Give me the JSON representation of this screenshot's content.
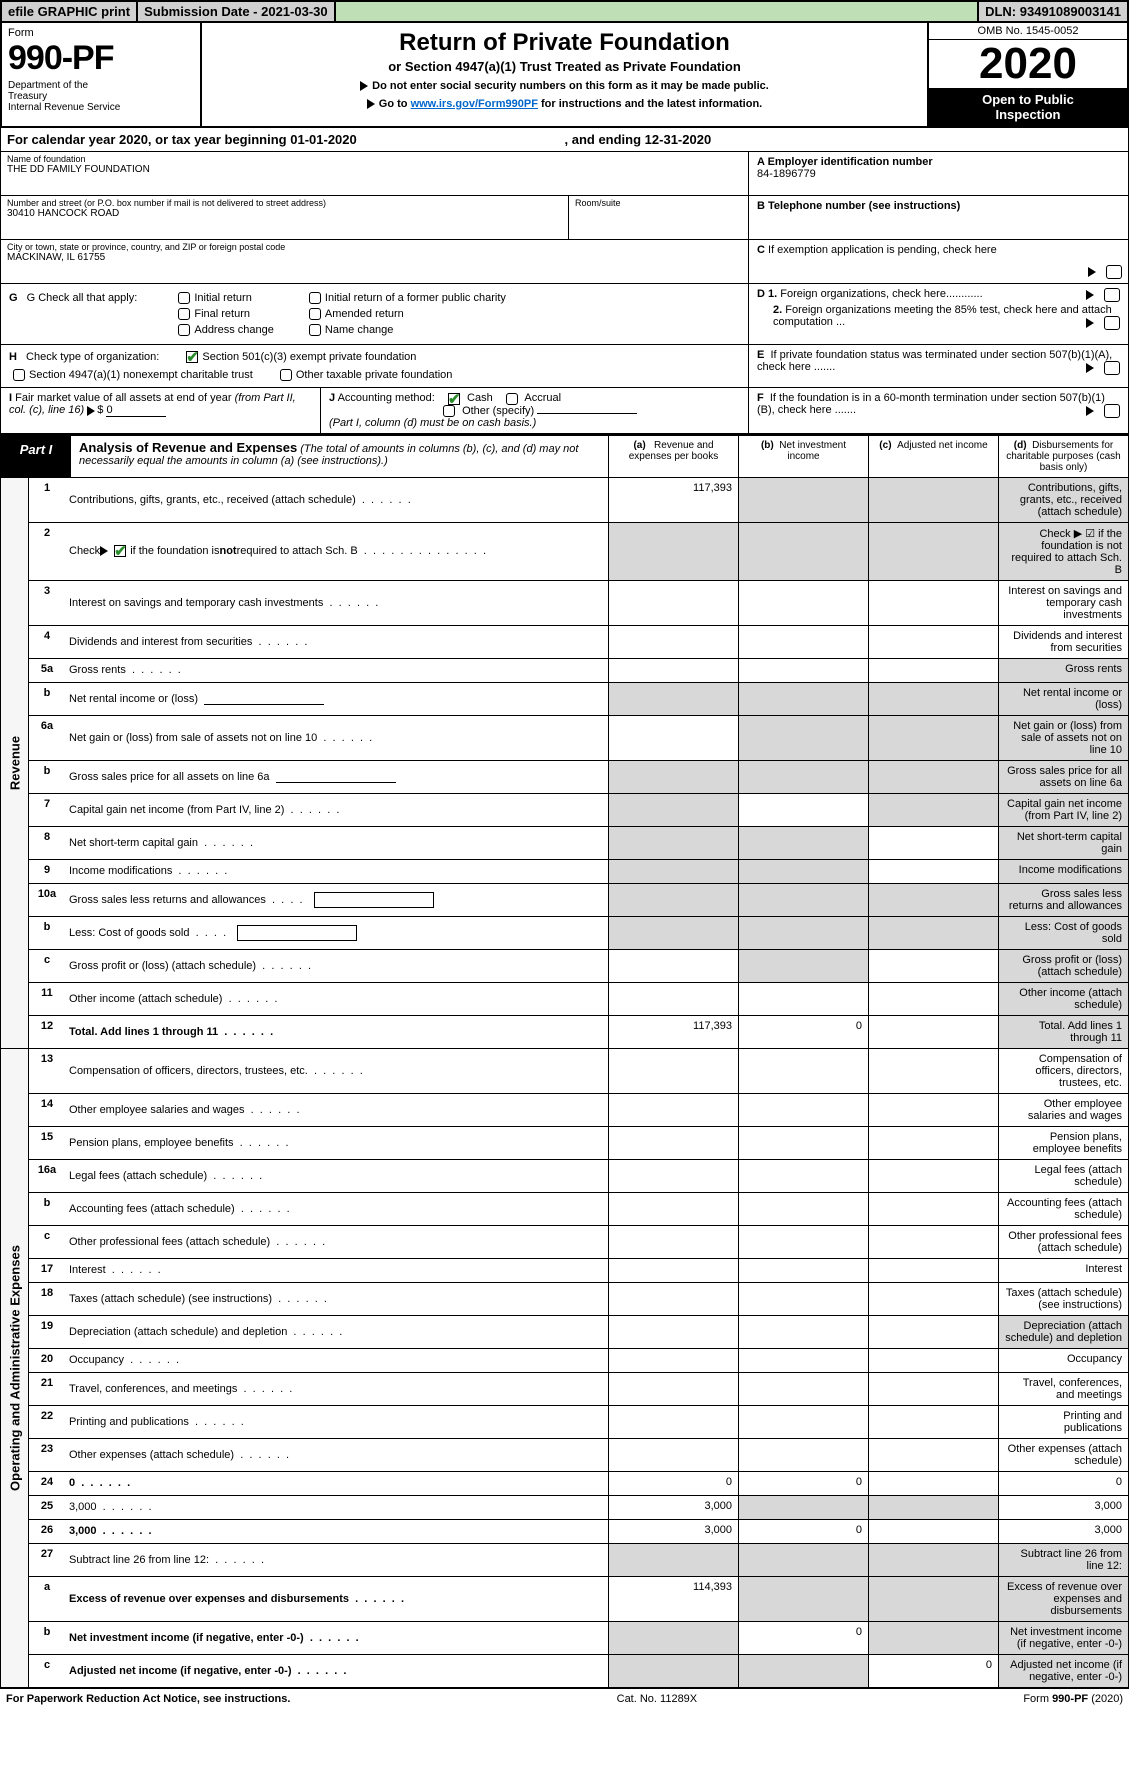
{
  "topbar": {
    "efile": "efile GRAPHIC print",
    "submission_label": "Submission Date - ",
    "submission_date": "2021-03-30",
    "dln_label": "DLN: ",
    "dln": "93491089003141"
  },
  "header": {
    "form_label": "Form",
    "form_number": "990-PF",
    "dept": "Department of the Treasury\nInternal Revenue Service",
    "title1": "Return of Private Foundation",
    "title2": "or Section 4947(a)(1) Trust Treated as Private Foundation",
    "note1": "Do not enter social security numbers on this form as it may be made public.",
    "note2_pre": "Go to ",
    "note2_link": "www.irs.gov/Form990PF",
    "note2_post": " for instructions and the latest information.",
    "omb": "OMB No. 1545-0052",
    "year": "2020",
    "open": "Open to Public Inspection"
  },
  "calendar": {
    "prefix": "For calendar year 2020, or tax year beginning ",
    "begin": "01-01-2020",
    "mid": ", and ending ",
    "end": "12-31-2020"
  },
  "entity": {
    "name_label": "Name of foundation",
    "name": "THE DD FAMILY FOUNDATION",
    "addr_label": "Number and street (or P.O. box number if mail is not delivered to street address)",
    "addr": "30410 HANCOCK ROAD",
    "room_label": "Room/suite",
    "city_label": "City or town, state or province, country, and ZIP or foreign postal code",
    "city": "MACKINAW, IL  61755"
  },
  "right": {
    "a_label": "A Employer identification number",
    "a_value": "84-1896779",
    "b_label": "B Telephone number (see instructions)",
    "c_label": "C If exemption application is pending, check here",
    "d1": "D 1. Foreign organizations, check here............",
    "d2": "2. Foreign organizations meeting the 85% test, check here and attach computation ...",
    "e": "E  If private foundation status was terminated under section 507(b)(1)(A), check here .......",
    "f": "F  If the foundation is in a 60-month termination under section 507(b)(1)(B), check here .......",
    "g_label": "G Check all that apply:",
    "g_opts": {
      "initial": "Initial return",
      "initial_former": "Initial return of a former public charity",
      "final": "Final return",
      "amended": "Amended return",
      "address": "Address change",
      "name": "Name change"
    },
    "h_label": "H Check type of organization:",
    "h_501": "Section 501(c)(3) exempt private foundation",
    "h_4947": "Section 4947(a)(1) nonexempt charitable trust",
    "h_other": "Other taxable private foundation",
    "i_label": "I Fair market value of all assets at end of year (from Part II, col. (c), line 16)",
    "i_value": "0",
    "j_label": "J Accounting method:",
    "j_cash": "Cash",
    "j_accrual": "Accrual",
    "j_other": "Other (specify)",
    "j_note": "(Part I, column (d) must be on cash basis.)"
  },
  "part1": {
    "label": "Part I",
    "title": "Analysis of Revenue and Expenses",
    "subtitle": "(The total of amounts in columns (b), (c), and (d) may not necessarily equal the amounts in column (a) (see instructions).)",
    "col_a": "(a)   Revenue and expenses per books",
    "col_b": "(b)  Net investment income",
    "col_c": "(c)  Adjusted net income",
    "col_d": "(d)  Disbursements for charitable purposes (cash basis only)"
  },
  "revenue_rows": [
    {
      "n": "1",
      "d": "Contributions, gifts, grants, etc., received (attach schedule)",
      "a": "117,393",
      "grey_bcd": true
    },
    {
      "n": "2",
      "d": "Check ▶ ☑ if the foundation is not required to attach Sch. B",
      "all_grey": true,
      "special": "check"
    },
    {
      "n": "3",
      "d": "Interest on savings and temporary cash investments"
    },
    {
      "n": "4",
      "d": "Dividends and interest from securities"
    },
    {
      "n": "5a",
      "d": "Gross rents",
      "grey_d": true
    },
    {
      "n": "b",
      "d": "Net rental income or (loss)",
      "line": true,
      "all_grey": true
    },
    {
      "n": "6a",
      "d": "Net gain or (loss) from sale of assets not on line 10",
      "grey_bcd": true
    },
    {
      "n": "b",
      "d": "Gross sales price for all assets on line 6a",
      "line": true,
      "all_grey": true
    },
    {
      "n": "7",
      "d": "Capital gain net income (from Part IV, line 2)",
      "grey_a": true,
      "grey_cd": true
    },
    {
      "n": "8",
      "d": "Net short-term capital gain",
      "grey_ab": true,
      "grey_d": true
    },
    {
      "n": "9",
      "d": "Income modifications",
      "grey_ab": true,
      "grey_d": true
    },
    {
      "n": "10a",
      "d": "Gross sales less returns and allowances",
      "box": true,
      "all_grey": true
    },
    {
      "n": "b",
      "d": "Less: Cost of goods sold",
      "box": true,
      "all_grey": true
    },
    {
      "n": "c",
      "d": "Gross profit or (loss) (attach schedule)",
      "grey_b": true,
      "grey_d": true
    },
    {
      "n": "11",
      "d": "Other income (attach schedule)",
      "grey_d": true
    },
    {
      "n": "12",
      "d": "Total. Add lines 1 through 11",
      "bold": true,
      "a": "117,393",
      "b": "0",
      "grey_d": true
    }
  ],
  "expense_rows": [
    {
      "n": "13",
      "d": "Compensation of officers, directors, trustees, etc."
    },
    {
      "n": "14",
      "d": "Other employee salaries and wages"
    },
    {
      "n": "15",
      "d": "Pension plans, employee benefits"
    },
    {
      "n": "16a",
      "d": "Legal fees (attach schedule)"
    },
    {
      "n": "b",
      "d": "Accounting fees (attach schedule)"
    },
    {
      "n": "c",
      "d": "Other professional fees (attach schedule)"
    },
    {
      "n": "17",
      "d": "Interest"
    },
    {
      "n": "18",
      "d": "Taxes (attach schedule) (see instructions)"
    },
    {
      "n": "19",
      "d": "Depreciation (attach schedule) and depletion",
      "grey_d": true
    },
    {
      "n": "20",
      "d": "Occupancy"
    },
    {
      "n": "21",
      "d": "Travel, conferences, and meetings"
    },
    {
      "n": "22",
      "d": "Printing and publications"
    },
    {
      "n": "23",
      "d": "Other expenses (attach schedule)"
    },
    {
      "n": "24",
      "d": "0",
      "bold": true,
      "a": "0",
      "b": "0"
    },
    {
      "n": "25",
      "d": "3,000",
      "a": "3,000",
      "grey_bc": true
    },
    {
      "n": "26",
      "d": "3,000",
      "bold": true,
      "a": "3,000",
      "b": "0"
    },
    {
      "n": "27",
      "d": "Subtract line 26 from line 12:",
      "grey_all_empty": true
    },
    {
      "n": "a",
      "d": "Excess of revenue over expenses and disbursements",
      "bold": true,
      "a": "114,393",
      "grey_bcd": true
    },
    {
      "n": "b",
      "d": "Net investment income (if negative, enter -0-)",
      "bold": true,
      "grey_a": true,
      "b": "0",
      "grey_cd": true
    },
    {
      "n": "c",
      "d": "Adjusted net income (if negative, enter -0-)",
      "bold": true,
      "grey_ab": true,
      "c": "0",
      "grey_d": true
    }
  ],
  "side_labels": {
    "revenue": "Revenue",
    "expenses": "Operating and Administrative Expenses"
  },
  "footer": {
    "left": "For Paperwork Reduction Act Notice, see instructions.",
    "mid": "Cat. No. 11289X",
    "right": "Form 990-PF (2020)"
  },
  "colors": {
    "link": "#0066cc",
    "check_green": "#2a8c2a",
    "grey_cell": "#d8d8d8",
    "topbar_grey": "#d0d0d0",
    "topbar_green": "#bfe0b6"
  }
}
